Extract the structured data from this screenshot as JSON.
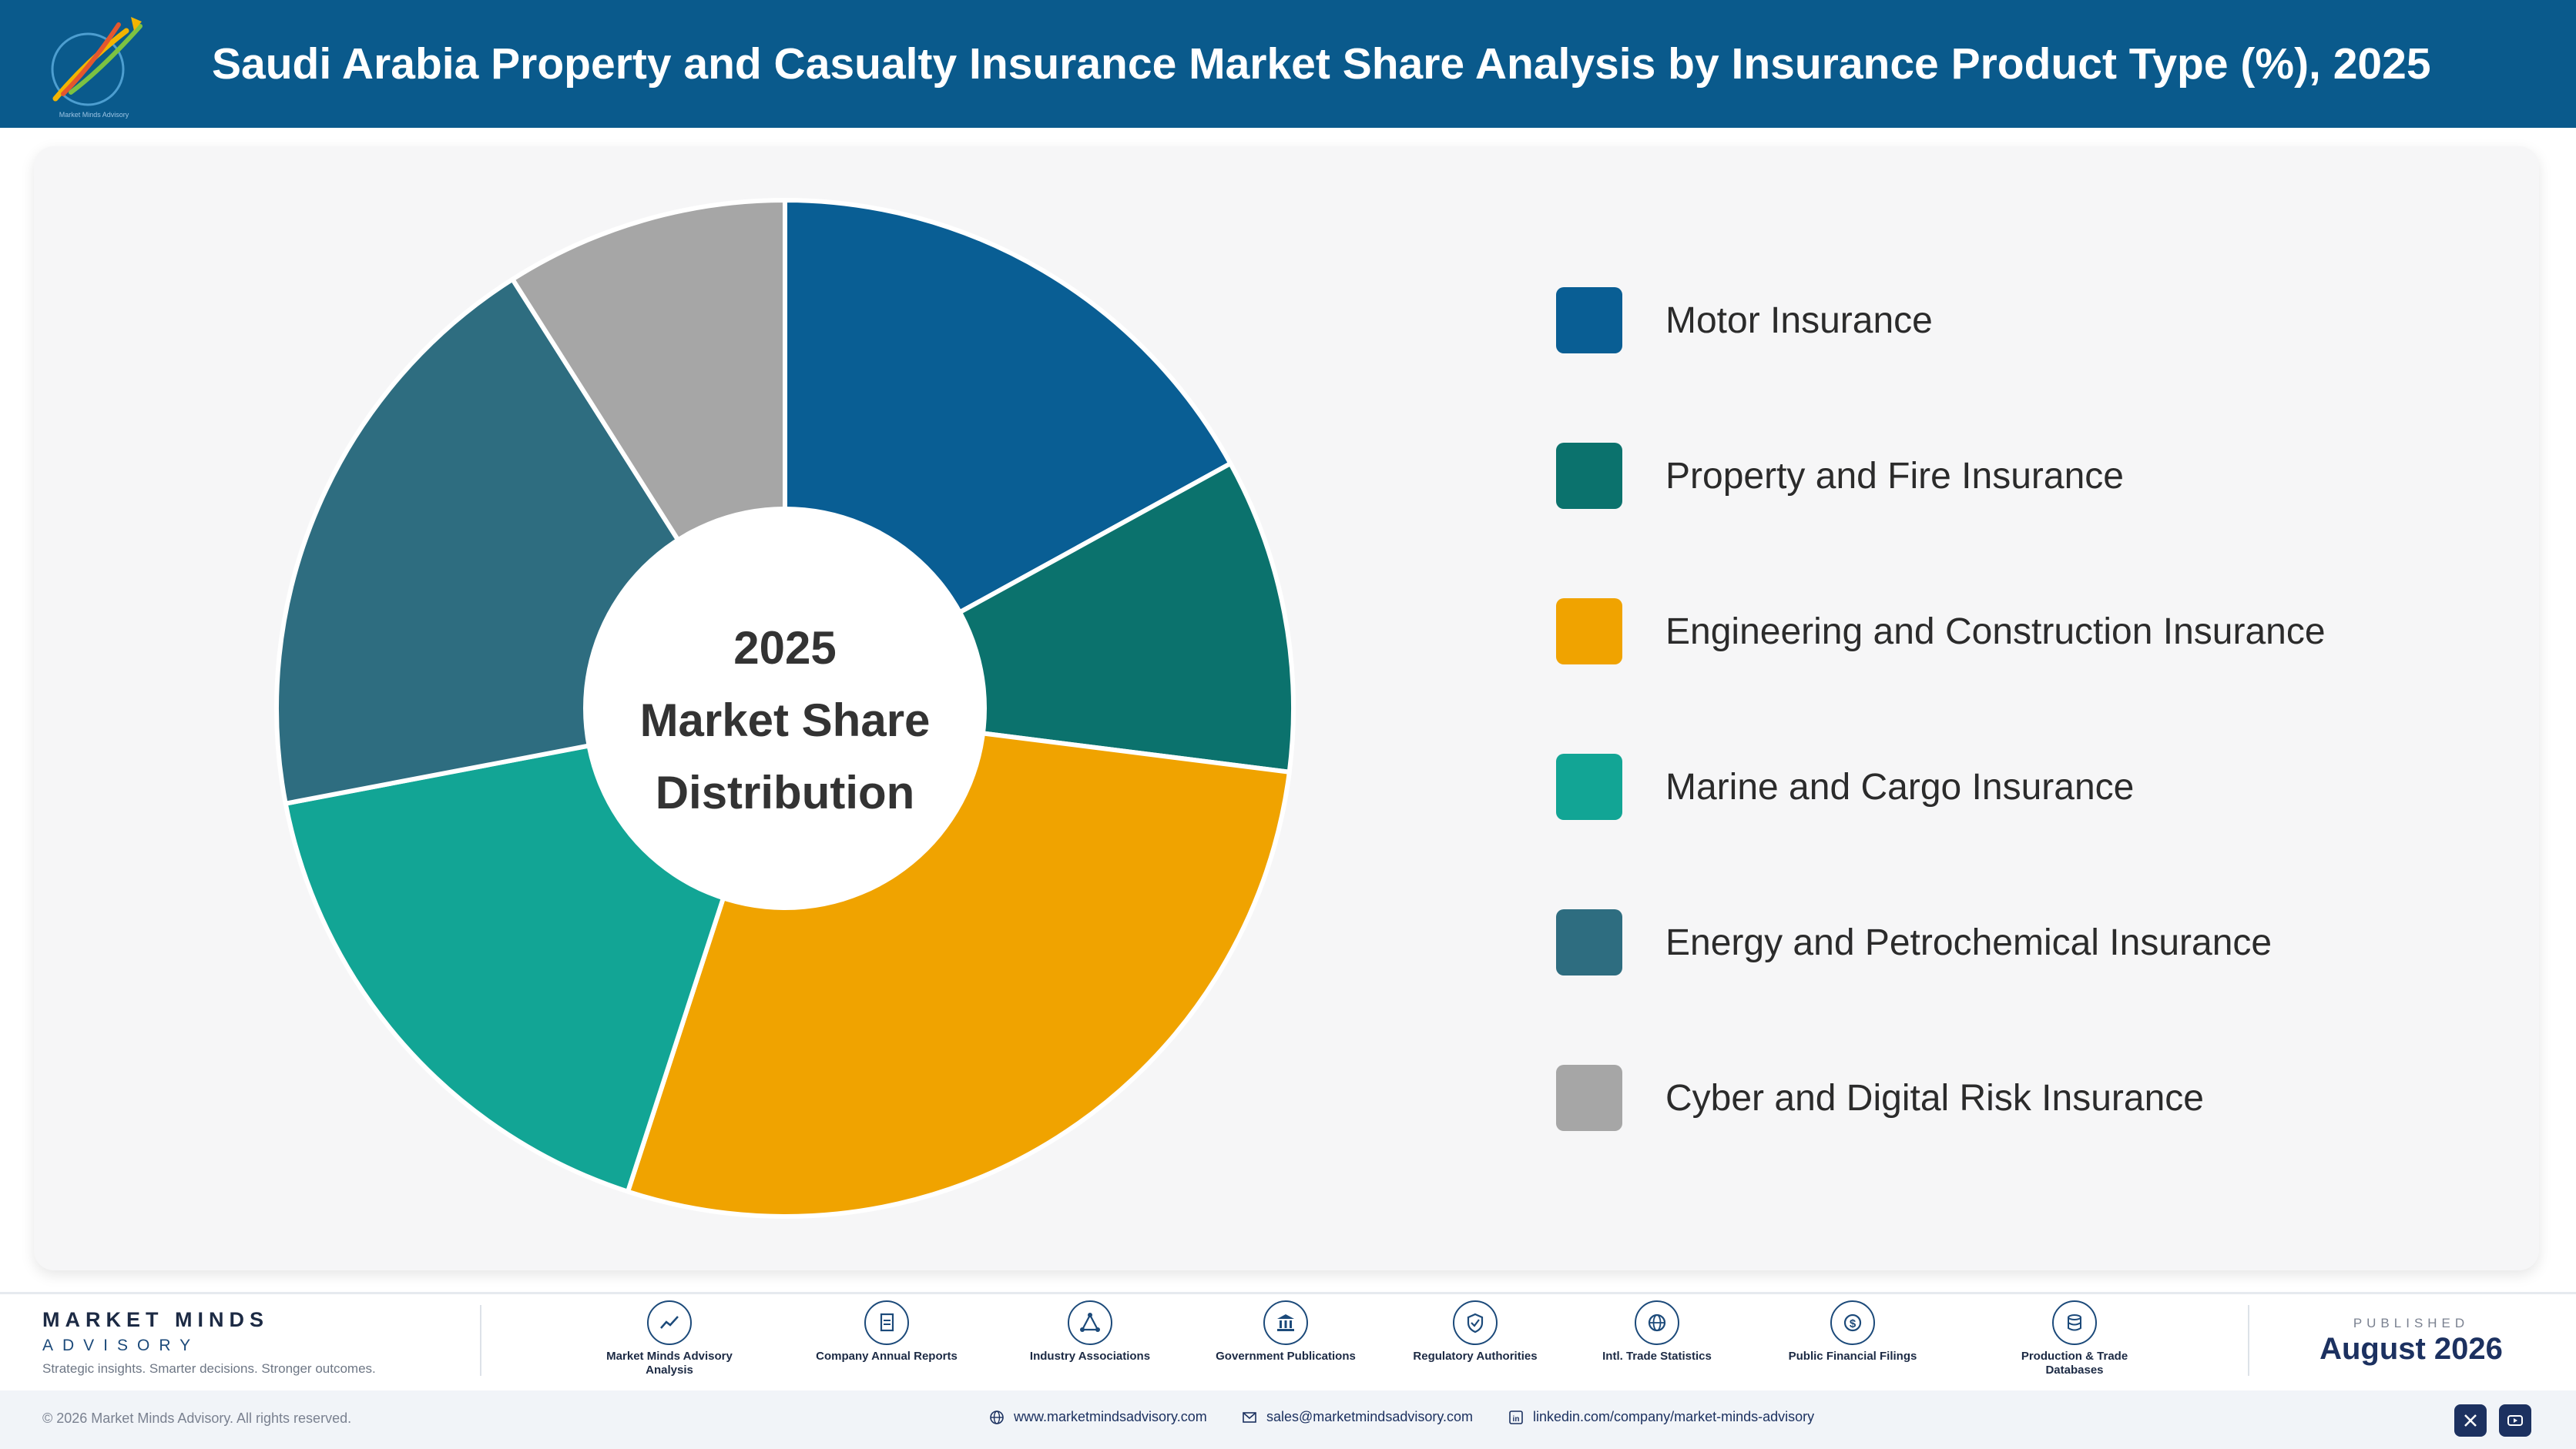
{
  "header": {
    "title": "Saudi Arabia Property and Casualty Insurance Market Share Analysis by Insurance Product Type (%), 2025",
    "logo_text": "Market Minds Advisory"
  },
  "chart_data": {
    "type": "pie",
    "title": "Saudi Arabia Property and Casualty Insurance Market Share Analysis by Insurance Product Type (%), 2025",
    "center_label": [
      "2025",
      "Market Share",
      "Distribution"
    ],
    "categories": [
      "Motor Insurance",
      "Property and Fire Insurance",
      "Engineering and Construction Insurance",
      "Marine and Cargo Insurance",
      "Energy and Petrochemical Insurance",
      "Cyber and Digital Risk Insurance"
    ],
    "values": [
      17.0,
      10.0,
      28.0,
      17.0,
      19.0,
      9.0
    ],
    "colors": [
      "#095e94",
      "#0b726d",
      "#f0a300",
      "#12a595",
      "#2e6d80",
      "#a6a6a6"
    ],
    "legend_position": "right",
    "start_angle_deg": 0,
    "direction": "clockwise"
  },
  "footer": {
    "brand_name": "MARKET MINDS",
    "brand_sub": "ADVISORY",
    "tagline": "Strategic insights. Smarter decisions. Stronger outcomes.",
    "sources": [
      {
        "label": "Market Minds Advisory Analysis",
        "icon": "chart-line-icon"
      },
      {
        "label": "Company Annual Reports",
        "icon": "document-icon"
      },
      {
        "label": "Industry Associations",
        "icon": "network-icon"
      },
      {
        "label": "Government Publications",
        "icon": "government-building-icon"
      },
      {
        "label": "Regulatory Authorities",
        "icon": "shield-check-icon"
      },
      {
        "label": "Intl. Trade Statistics",
        "icon": "globe-icon"
      },
      {
        "label": "Public Financial Filings",
        "icon": "dollar-coin-icon"
      },
      {
        "label": "Production & Trade Databases",
        "icon": "database-icon"
      }
    ],
    "published_label": "PUBLISHED",
    "published_date": "August 2026"
  },
  "bottom_bar": {
    "copyright": "© 2026 Market Minds Advisory. All rights reserved.",
    "website": "www.marketmindsadvisory.com",
    "email": "sales@marketmindsadvisory.com",
    "linkedin": "linkedin.com/company/market-minds-advisory"
  }
}
